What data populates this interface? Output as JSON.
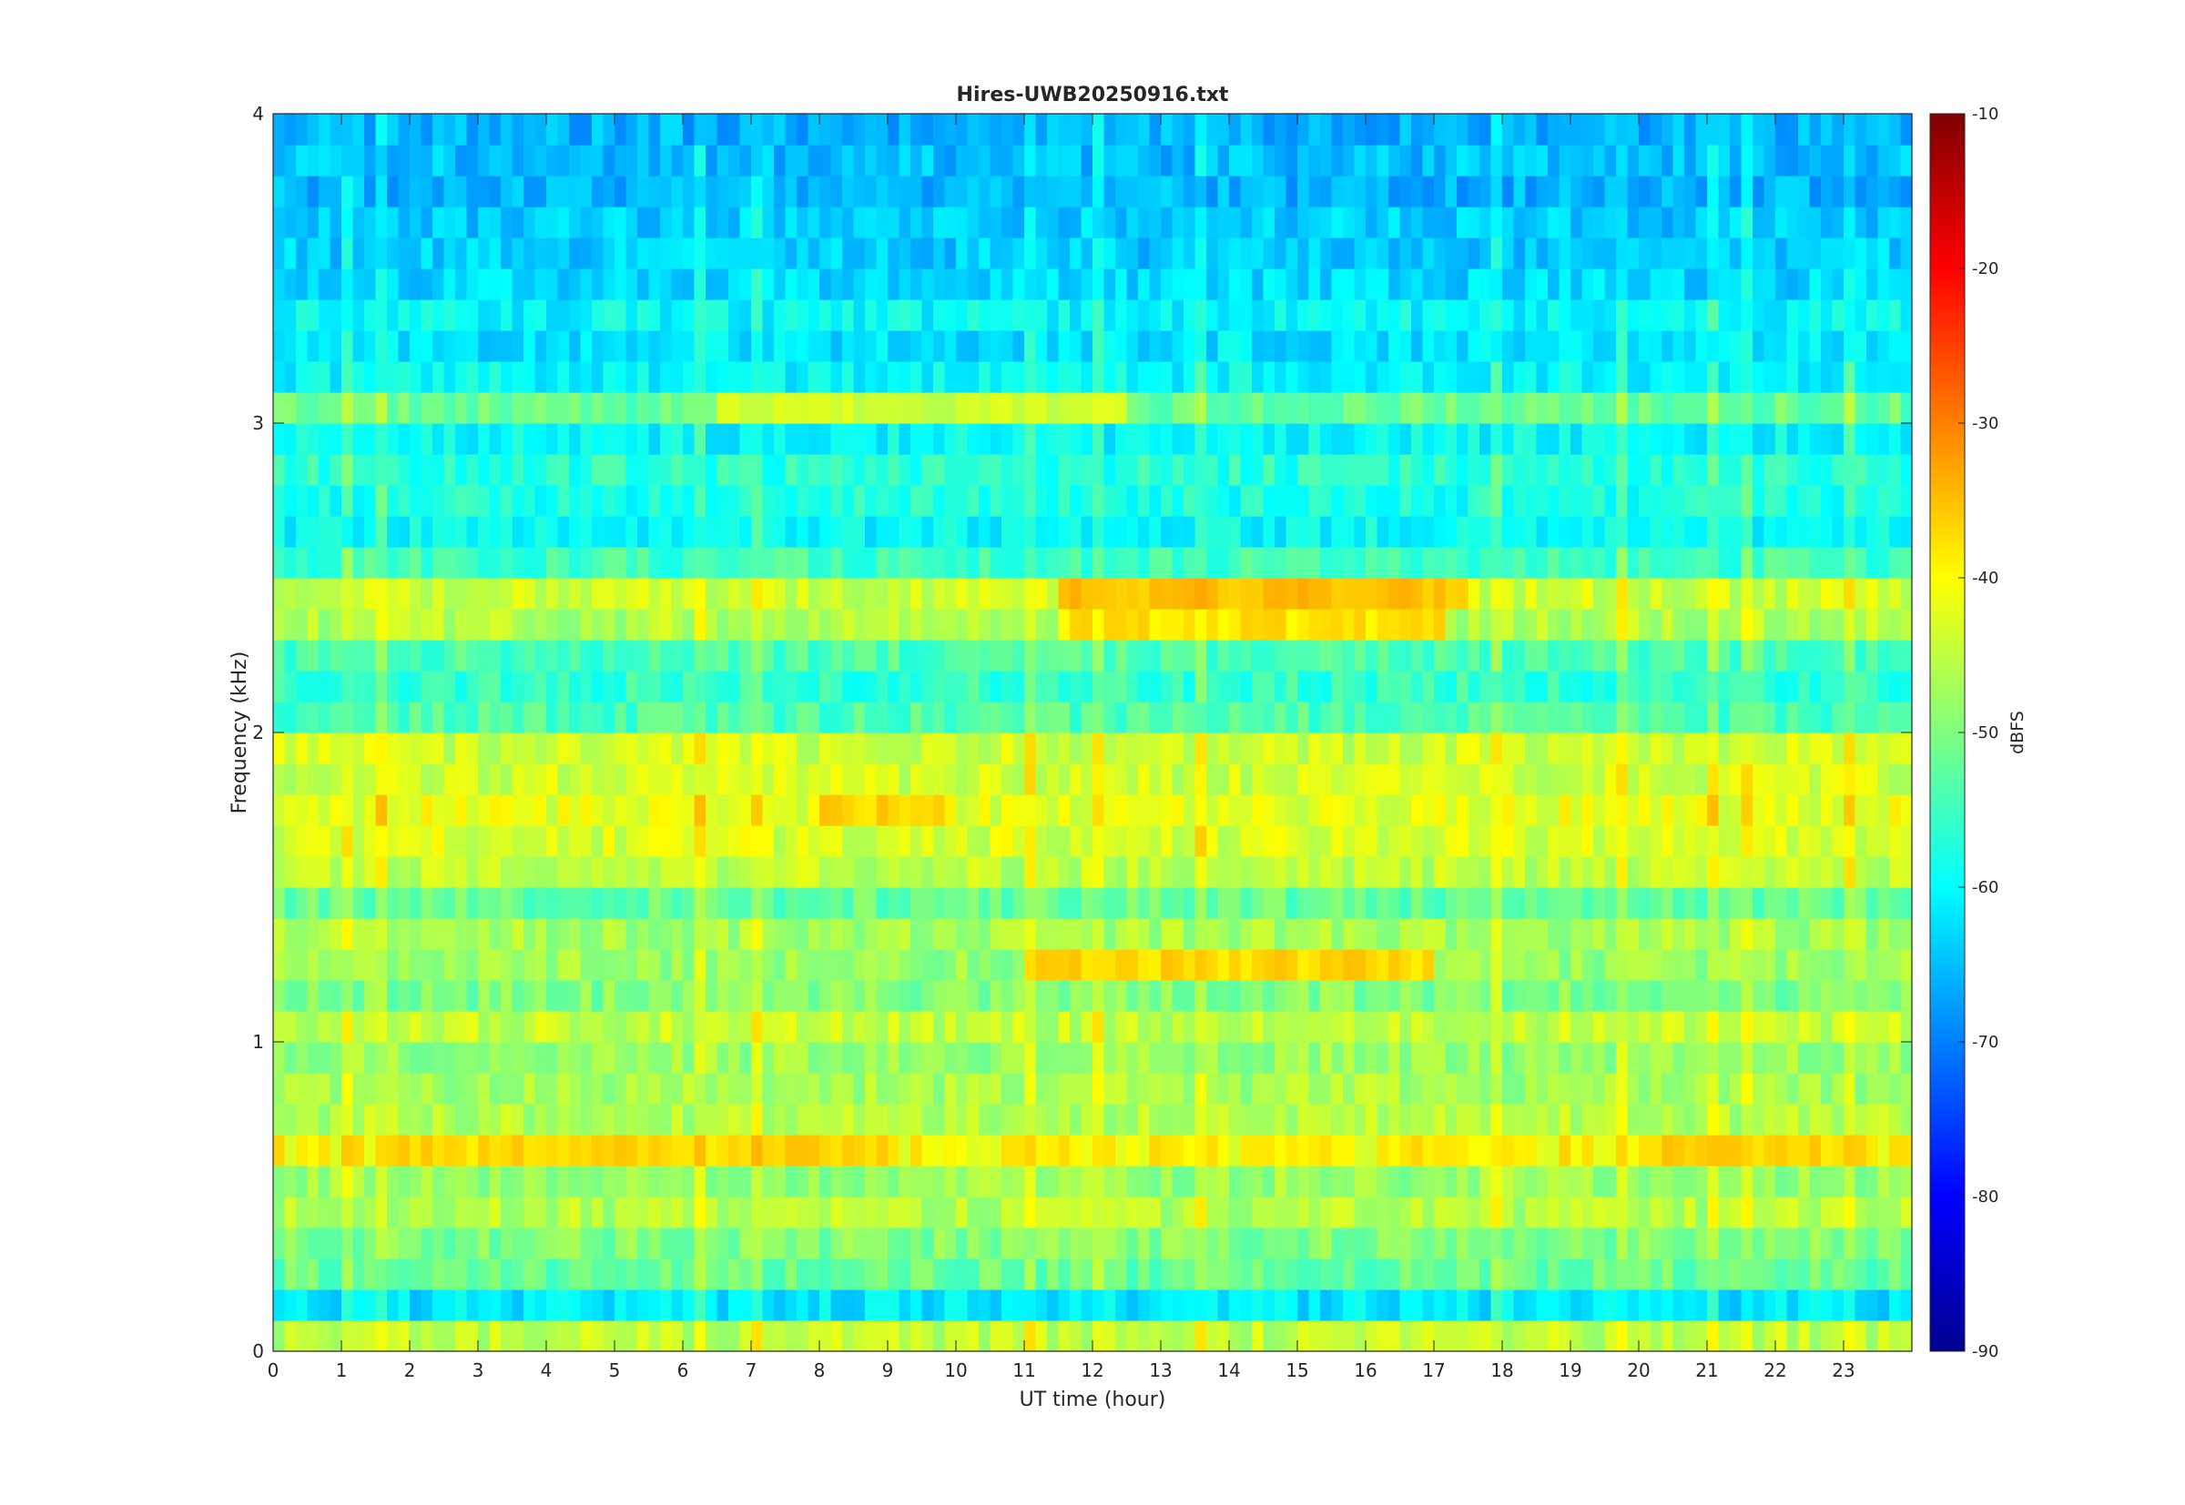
{
  "chart_data": {
    "type": "heatmap",
    "title": "Hires-UWB20250916.txt",
    "xlabel": "UT time (hour)",
    "ylabel": "Frequency (kHz)",
    "colorbar_label": "dBFS",
    "colormap": "jet",
    "xlim": [
      0,
      24
    ],
    "ylim": [
      0,
      4
    ],
    "clim": [
      -90,
      -10
    ],
    "x_ticks": [
      "0",
      "1",
      "2",
      "3",
      "4",
      "5",
      "6",
      "7",
      "8",
      "9",
      "10",
      "11",
      "12",
      "13",
      "14",
      "15",
      "16",
      "17",
      "18",
      "19",
      "20",
      "21",
      "22",
      "23"
    ],
    "y_ticks": [
      "0",
      "1",
      "2",
      "3",
      "4"
    ],
    "colorbar_ticks": [
      "-10",
      "-20",
      "-30",
      "-40",
      "-50",
      "-60",
      "-70",
      "-80",
      "-90"
    ],
    "grid": false,
    "rows": 40,
    "cols": 144,
    "band_profile_khz_dbfs": [
      [
        0.05,
        -45
      ],
      [
        0.15,
        -62
      ],
      [
        0.25,
        -52
      ],
      [
        0.35,
        -50
      ],
      [
        0.45,
        -46
      ],
      [
        0.55,
        -48
      ],
      [
        0.65,
        -40
      ],
      [
        0.75,
        -46
      ],
      [
        0.85,
        -47
      ],
      [
        0.95,
        -48
      ],
      [
        1.05,
        -45
      ],
      [
        1.15,
        -50
      ],
      [
        1.25,
        -48
      ],
      [
        1.35,
        -47
      ],
      [
        1.45,
        -52
      ],
      [
        1.55,
        -45
      ],
      [
        1.65,
        -43
      ],
      [
        1.75,
        -42
      ],
      [
        1.85,
        -44
      ],
      [
        1.95,
        -44
      ],
      [
        2.05,
        -54
      ],
      [
        2.15,
        -56
      ],
      [
        2.25,
        -54
      ],
      [
        2.35,
        -46
      ],
      [
        2.45,
        -44
      ],
      [
        2.55,
        -55
      ],
      [
        2.65,
        -60
      ],
      [
        2.75,
        -58
      ],
      [
        2.85,
        -57
      ],
      [
        2.95,
        -60
      ],
      [
        3.05,
        -52
      ],
      [
        3.15,
        -60
      ],
      [
        3.25,
        -62
      ],
      [
        3.35,
        -60
      ],
      [
        3.45,
        -63
      ],
      [
        3.55,
        -64
      ],
      [
        3.65,
        -64
      ],
      [
        3.75,
        -66
      ],
      [
        3.85,
        -65
      ],
      [
        3.95,
        -66
      ]
    ],
    "notable_features": [
      {
        "freq_khz": 2.45,
        "ut_start": 11.5,
        "ut_end": 17.5,
        "dbfs": -35
      },
      {
        "freq_khz": 2.35,
        "ut_start": 11.5,
        "ut_end": 17.2,
        "dbfs": -38
      },
      {
        "freq_khz": 1.25,
        "ut_start": 11.0,
        "ut_end": 17.0,
        "dbfs": -37
      },
      {
        "freq_khz": 0.65,
        "ut_start": 1.5,
        "ut_end": 9.0,
        "dbfs": -37
      },
      {
        "freq_khz": 0.65,
        "ut_start": 20.0,
        "ut_end": 23.5,
        "dbfs": -37
      },
      {
        "freq_khz": 1.75,
        "ut_start": 8.0,
        "ut_end": 10.0,
        "dbfs": -37
      },
      {
        "freq_khz": 3.05,
        "ut_start": 6.5,
        "ut_end": 12.5,
        "dbfs": -44
      }
    ]
  }
}
